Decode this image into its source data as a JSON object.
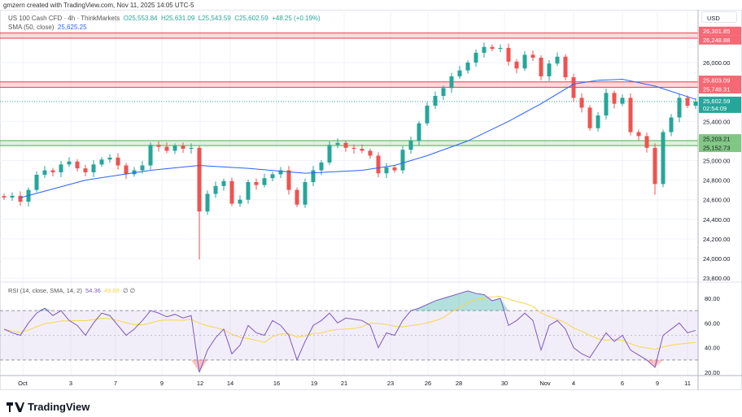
{
  "credit": "gmzern created with TradingView.com, Nov 11, 2025 14:05 UTC-5",
  "legend": {
    "symbol": "US 100 Cash CFD · 4h · ThinkMarkets",
    "open": "O25,553.84",
    "high": "H25,631.09",
    "low": "L25,543.59",
    "close": "C25,602.59",
    "change": "+48.25 (+0.19%)",
    "sma_label": "SMA (50, close)",
    "sma_value": "25,625.25"
  },
  "rsi_legend": {
    "label": "RSI (14, close, SMA, 14, 2)",
    "rsi_value": "54.36",
    "ma_value": "49.89",
    "extra": "∅ ∅"
  },
  "currency": "USD",
  "brand": "TradingView",
  "colors": {
    "up": "#26a69a",
    "down": "#ef5350",
    "sma": "#2962ff",
    "rsi": "#7e57c2",
    "rsi_ma": "#f5d64b",
    "resistance": "#f23645",
    "support": "#4caf50"
  },
  "price_axis": {
    "ticks": [
      26000,
      25400,
      25000,
      24800,
      24600,
      24400,
      24200,
      24000,
      23800
    ],
    "tick_labels": [
      "26,000.00",
      "25,400.00",
      "25,000.00",
      "24,800.00",
      "24,600.00",
      "24,400.00",
      "24,200.00",
      "24,000.00",
      "23,800.00"
    ]
  },
  "tags": [
    {
      "label": "26,301.85",
      "price": 26301.85,
      "type": "resistance"
    },
    {
      "label": "26,248.88",
      "price": 26248.88,
      "type": "resistance"
    },
    {
      "label": "25,803.09",
      "price": 25803.09,
      "type": "resistance"
    },
    {
      "label": "25,748.31",
      "price": 25748.31,
      "type": "resistance"
    },
    {
      "label": "25,203.21",
      "price": 25203.21,
      "type": "support"
    },
    {
      "label": "25,152.73",
      "price": 25152.73,
      "type": "support"
    }
  ],
  "last_price": {
    "label": "25,602.59",
    "countdown": "02:54:09",
    "price": 25602.59
  },
  "rsi_axis": {
    "ticks": [
      80,
      60,
      40,
      20
    ],
    "tick_labels": [
      "80.00",
      "60.00",
      "40.00",
      "20.00"
    ],
    "bands": [
      70,
      30
    ]
  },
  "x_axis": {
    "labels": [
      "Oct",
      "3",
      "7",
      "9",
      "12",
      "14",
      "16",
      "19",
      "21",
      "23",
      "26",
      "28",
      "30",
      "Nov",
      "4",
      "6",
      "9",
      "11"
    ]
  },
  "chart_data": {
    "type": "candlestick",
    "closes": [
      24622,
      24640,
      24580,
      24700,
      24855,
      24900,
      24880,
      24960,
      24990,
      24920,
      24880,
      24960,
      25010,
      25030,
      24950,
      24860,
      24900,
      24950,
      25160,
      25140,
      25100,
      25150,
      25120,
      25130,
      24480,
      24660,
      24740,
      24790,
      24560,
      24600,
      24780,
      24750,
      24820,
      24860,
      24900,
      24700,
      24550,
      24780,
      24900,
      24980,
      25160,
      25180,
      25130,
      25120,
      25100,
      25050,
      24870,
      24930,
      24900,
      25110,
      25200,
      25380,
      25560,
      25660,
      25740,
      25860,
      25920,
      26000,
      26100,
      26160,
      26140,
      26150,
      26010,
      25940,
      26080,
      26050,
      25860,
      25990,
      26060,
      25850,
      25640,
      25540,
      25330,
      25460,
      25690,
      25580,
      25640,
      25290,
      25250,
      25130,
      24760,
      25290,
      25440,
      25640,
      25560,
      25602
    ],
    "sma_points": [
      [
        2,
        24620
      ],
      [
        10,
        24800
      ],
      [
        18,
        24900
      ],
      [
        24,
        24950
      ],
      [
        30,
        24920
      ],
      [
        37,
        24870
      ],
      [
        44,
        24900
      ],
      [
        48,
        24950
      ],
      [
        52,
        25050
      ],
      [
        57,
        25200
      ],
      [
        62,
        25400
      ],
      [
        66,
        25580
      ],
      [
        70,
        25780
      ],
      [
        73,
        25820
      ],
      [
        76,
        25830
      ],
      [
        80,
        25760
      ],
      [
        85,
        25625
      ]
    ],
    "rsi": [
      55,
      52,
      50,
      60,
      68,
      72,
      66,
      70,
      62,
      58,
      50,
      60,
      68,
      66,
      58,
      50,
      55,
      62,
      70,
      68,
      65,
      67,
      64,
      66,
      20,
      38,
      48,
      55,
      35,
      42,
      58,
      52,
      50,
      62,
      58,
      50,
      30,
      45,
      58,
      62,
      68,
      60,
      64,
      63,
      62,
      58,
      40,
      52,
      50,
      62,
      70,
      72,
      75,
      78,
      80,
      82,
      84,
      86,
      84,
      83,
      78,
      80,
      58,
      62,
      68,
      62,
      38,
      58,
      62,
      55,
      40,
      35,
      32,
      42,
      52,
      45,
      50,
      38,
      34,
      30,
      24,
      50,
      55,
      60,
      52,
      54
    ]
  }
}
